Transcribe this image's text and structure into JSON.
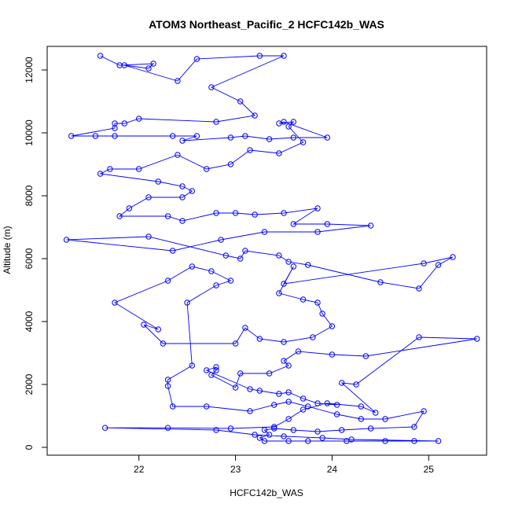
{
  "chart_data": {
    "type": "scatter",
    "title": "ATOM3 Northeast_Pacific_2 HCFC142b_WAS",
    "xlabel": "HCFC142b_WAS",
    "ylabel": "Altitude (m)",
    "xlim": [
      21.05,
      25.6
    ],
    "ylim": [
      -250,
      12750
    ],
    "xticks": [
      22,
      23,
      24,
      25
    ],
    "yticks": [
      0,
      2000,
      4000,
      6000,
      8000,
      10000,
      12000
    ],
    "grid": false,
    "legend": "none",
    "colors": {
      "series": "#0000ff",
      "axis": "#000000"
    },
    "series": [
      {
        "points": [
          [
            21.6,
            12450
          ],
          [
            21.8,
            12150
          ],
          [
            22.15,
            12200
          ],
          [
            22.1,
            12050
          ],
          [
            21.85,
            12150
          ],
          [
            22.4,
            11650
          ],
          [
            22.6,
            12350
          ],
          [
            23.25,
            12450
          ],
          [
            23.5,
            12450
          ],
          [
            22.75,
            11450
          ],
          [
            23.05,
            11000
          ],
          [
            23.2,
            10550
          ],
          [
            22.8,
            10350
          ],
          [
            22.0,
            10450
          ],
          [
            21.85,
            10300
          ],
          [
            21.75,
            10300
          ],
          [
            21.75,
            10150
          ],
          [
            21.3,
            9900
          ],
          [
            21.55,
            9900
          ],
          [
            21.75,
            9900
          ],
          [
            22.35,
            9900
          ],
          [
            22.6,
            9900
          ],
          [
            22.45,
            9750
          ],
          [
            22.95,
            9850
          ],
          [
            23.1,
            9900
          ],
          [
            23.35,
            9800
          ],
          [
            23.6,
            9850
          ],
          [
            23.95,
            9850
          ],
          [
            23.5,
            10350
          ],
          [
            23.45,
            10300
          ],
          [
            23.6,
            10350
          ],
          [
            23.55,
            10200
          ],
          [
            23.7,
            9700
          ],
          [
            23.45,
            9350
          ],
          [
            23.15,
            9450
          ],
          [
            22.95,
            9000
          ],
          [
            22.7,
            8850
          ],
          [
            22.4,
            9300
          ],
          [
            22.0,
            8850
          ],
          [
            21.7,
            8850
          ],
          [
            21.6,
            8700
          ],
          [
            22.2,
            8450
          ],
          [
            22.45,
            8300
          ],
          [
            22.55,
            8150
          ],
          [
            22.45,
            7950
          ],
          [
            22.1,
            7950
          ],
          [
            21.9,
            7600
          ],
          [
            21.8,
            7350
          ],
          [
            22.3,
            7350
          ],
          [
            22.45,
            7200
          ],
          [
            22.8,
            7450
          ],
          [
            23.0,
            7450
          ],
          [
            23.2,
            7400
          ],
          [
            23.5,
            7450
          ],
          [
            23.85,
            7600
          ],
          [
            23.6,
            7100
          ],
          [
            23.95,
            7100
          ],
          [
            24.4,
            7050
          ],
          [
            23.85,
            6850
          ],
          [
            23.3,
            6850
          ],
          [
            22.85,
            6600
          ],
          [
            22.35,
            6250
          ],
          [
            21.25,
            6600
          ],
          [
            22.1,
            6700
          ],
          [
            22.9,
            6100
          ],
          [
            23.05,
            6000
          ],
          [
            23.1,
            6250
          ],
          [
            23.45,
            6100
          ],
          [
            23.55,
            5900
          ],
          [
            23.75,
            5800
          ],
          [
            24.5,
            5250
          ],
          [
            24.9,
            5050
          ],
          [
            25.1,
            5800
          ],
          [
            25.25,
            6050
          ],
          [
            24.95,
            5850
          ],
          [
            23.5,
            5200
          ],
          [
            23.6,
            5750
          ],
          [
            23.45,
            4900
          ],
          [
            23.7,
            4700
          ],
          [
            23.85,
            4600
          ],
          [
            23.9,
            4250
          ],
          [
            24.0,
            3850
          ],
          [
            23.8,
            3500
          ],
          [
            23.5,
            3350
          ],
          [
            23.25,
            3450
          ],
          [
            23.1,
            3800
          ],
          [
            23.0,
            3300
          ],
          [
            22.25,
            3300
          ],
          [
            22.05,
            3900
          ],
          [
            22.2,
            3750
          ],
          [
            21.75,
            4600
          ],
          [
            22.3,
            5300
          ],
          [
            22.55,
            5750
          ],
          [
            22.75,
            5600
          ],
          [
            22.95,
            5300
          ],
          [
            22.8,
            5150
          ],
          [
            22.5,
            4600
          ],
          [
            22.55,
            2600
          ],
          [
            22.3,
            2150
          ],
          [
            22.3,
            1950
          ],
          [
            22.35,
            1300
          ],
          [
            22.7,
            1300
          ],
          [
            23.15,
            1150
          ],
          [
            23.4,
            1350
          ],
          [
            23.55,
            1450
          ],
          [
            23.75,
            1300
          ],
          [
            24.05,
            1050
          ],
          [
            24.3,
            900
          ],
          [
            24.55,
            900
          ],
          [
            24.95,
            1150
          ],
          [
            24.85,
            650
          ],
          [
            24.4,
            600
          ],
          [
            24.1,
            550
          ],
          [
            23.85,
            500
          ],
          [
            23.6,
            550
          ],
          [
            23.4,
            600
          ],
          [
            23.3,
            550
          ],
          [
            23.35,
            400
          ],
          [
            23.25,
            300
          ],
          [
            23.3,
            200
          ],
          [
            23.55,
            200
          ],
          [
            23.75,
            200
          ],
          [
            24.15,
            200
          ],
          [
            24.55,
            200
          ],
          [
            24.85,
            200
          ],
          [
            25.1,
            200
          ],
          [
            24.2,
            250
          ],
          [
            23.9,
            300
          ],
          [
            23.5,
            350
          ],
          [
            23.2,
            400
          ],
          [
            22.8,
            550
          ],
          [
            21.65,
            620
          ],
          [
            22.3,
            620
          ],
          [
            22.95,
            600
          ],
          [
            23.4,
            650
          ],
          [
            23.55,
            900
          ],
          [
            23.7,
            1200
          ],
          [
            23.95,
            1400
          ],
          [
            24.3,
            1300
          ],
          [
            24.45,
            1100
          ],
          [
            24.1,
            2050
          ],
          [
            24.25,
            2000
          ],
          [
            24.9,
            3500
          ],
          [
            25.5,
            3450
          ],
          [
            24.35,
            2900
          ],
          [
            24.0,
            2950
          ],
          [
            23.65,
            3050
          ],
          [
            23.5,
            2750
          ],
          [
            23.55,
            2600
          ],
          [
            23.35,
            2350
          ],
          [
            23.05,
            2350
          ],
          [
            23.0,
            1900
          ],
          [
            22.75,
            2300
          ],
          [
            22.8,
            2450
          ],
          [
            22.8,
            2550
          ],
          [
            22.7,
            2450
          ],
          [
            23.15,
            1850
          ],
          [
            23.25,
            1800
          ],
          [
            23.45,
            1700
          ],
          [
            23.55,
            1750
          ],
          [
            23.7,
            1550
          ],
          [
            23.85,
            1400
          ],
          [
            24.05,
            1350
          ]
        ]
      }
    ]
  }
}
